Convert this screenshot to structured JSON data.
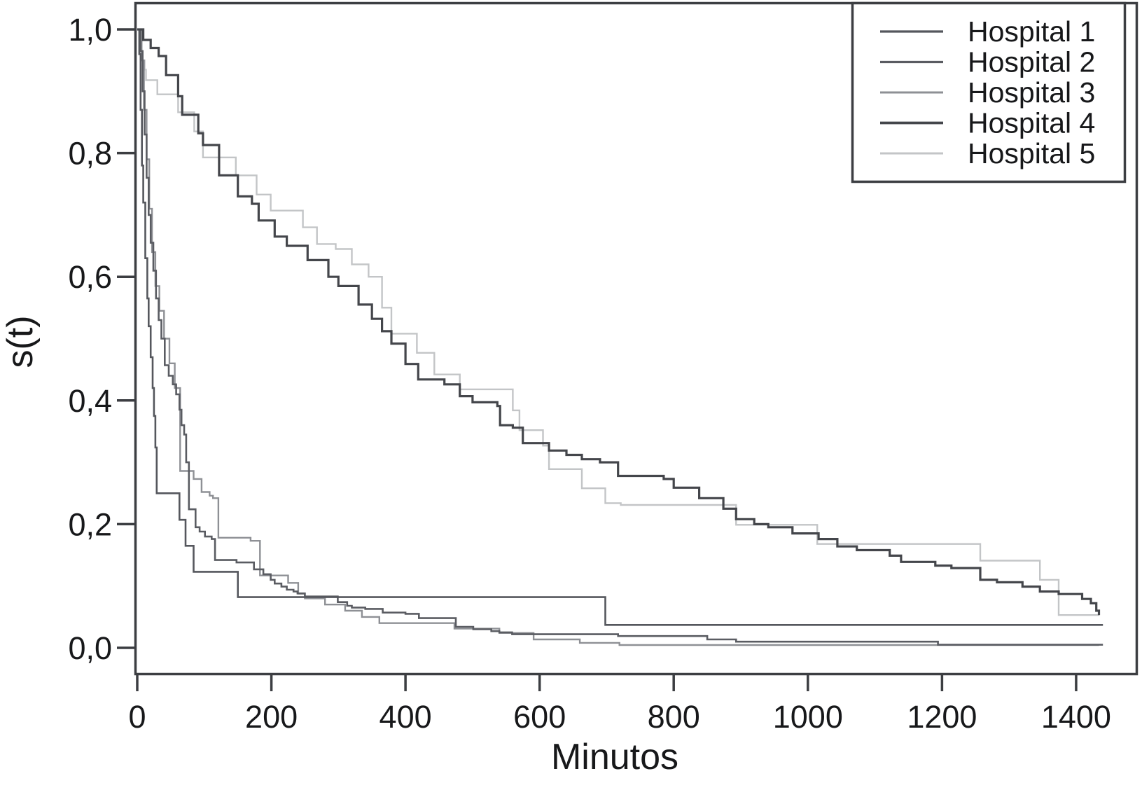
{
  "figure": {
    "background_color": "#ffffff",
    "frame_color": "#3c3e42",
    "text_color": "#17181a"
  },
  "chart_data": {
    "type": "line",
    "subtype": "kaplan-meier-step-survival",
    "title": "",
    "xlabel": "Minutos",
    "ylabel": "s(t)",
    "xlim": [
      0,
      1440
    ],
    "ylim": [
      0.0,
      1.0
    ],
    "grid": false,
    "legend_position": "top-right",
    "x_ticks": [
      0,
      200,
      400,
      600,
      800,
      1000,
      1200,
      1400
    ],
    "x_tick_labels": [
      "0",
      "200",
      "400",
      "600",
      "800",
      "1000",
      "1200",
      "1400"
    ],
    "y_ticks": [
      0.0,
      0.2,
      0.4,
      0.6,
      0.8,
      1.0
    ],
    "y_tick_labels": [
      "0,0",
      "0,2",
      "0,4",
      "0,6",
      "0,8",
      "1,0"
    ],
    "series": [
      {
        "name": "Hospital 5",
        "color": "#c3c5c7",
        "line_width": 2.4,
        "x": [
          0,
          7,
          11,
          13,
          30,
          61,
          85,
          98,
          147,
          178,
          199,
          247,
          268,
          296,
          320,
          345,
          365,
          379,
          417,
          443,
          481,
          560,
          570,
          605,
          614,
          663,
          698,
          721,
          893,
          1014,
          1257,
          1346,
          1374,
          1434
        ],
        "s": [
          1.0,
          0.95,
          0.935,
          0.918,
          0.895,
          0.866,
          0.835,
          0.793,
          0.764,
          0.733,
          0.707,
          0.68,
          0.653,
          0.645,
          0.62,
          0.6,
          0.55,
          0.508,
          0.477,
          0.442,
          0.418,
          0.384,
          0.352,
          0.327,
          0.289,
          0.258,
          0.234,
          0.231,
          0.199,
          0.168,
          0.141,
          0.11,
          0.053,
          0.053
        ]
      },
      {
        "name": "Hospital 3",
        "color": "#8e9095",
        "line_width": 2.4,
        "x": [
          0,
          6,
          10,
          14,
          18,
          22,
          27,
          33,
          40,
          48,
          56,
          64,
          84,
          96,
          108,
          113,
          121,
          169,
          183,
          225,
          240,
          250,
          280,
          310,
          335,
          361,
          473,
          540,
          591,
          660,
          719,
          1434
        ],
        "s": [
          1.0,
          0.95,
          0.87,
          0.79,
          0.71,
          0.64,
          0.585,
          0.545,
          0.5,
          0.46,
          0.42,
          0.286,
          0.273,
          0.252,
          0.246,
          0.242,
          0.178,
          0.173,
          0.117,
          0.105,
          0.0875,
          0.08,
          0.07,
          0.06,
          0.05,
          0.04,
          0.031,
          0.024,
          0.0136,
          0.008,
          0.0045,
          0.0045
        ]
      },
      {
        "name": "Hospital 2",
        "color": "#5a5c62",
        "line_width": 2.6,
        "x": [
          0,
          5,
          8,
          11,
          14,
          17,
          20,
          24,
          28,
          32,
          36,
          41,
          47,
          53,
          58,
          63,
          66,
          70,
          73,
          77,
          87,
          93,
          101,
          111,
          116,
          148,
          174,
          188,
          199,
          205,
          215,
          223,
          233,
          239,
          250,
          299,
          313,
          320,
          340,
          366,
          400,
          420,
          475,
          501,
          528,
          540,
          559,
          717,
          850,
          893,
          1194,
          1440
        ],
        "s": [
          1.0,
          0.965,
          0.9,
          0.83,
          0.76,
          0.7,
          0.655,
          0.61,
          0.565,
          0.53,
          0.5,
          0.457,
          0.44,
          0.426,
          0.41,
          0.385,
          0.36,
          0.345,
          0.3,
          0.224,
          0.195,
          0.188,
          0.18,
          0.176,
          0.142,
          0.138,
          0.127,
          0.119,
          0.11,
          0.104,
          0.099,
          0.094,
          0.091,
          0.088,
          0.083,
          0.074,
          0.068,
          0.065,
          0.063,
          0.057,
          0.055,
          0.048,
          0.034,
          0.03,
          0.027,
          0.025,
          0.022,
          0.019,
          0.0136,
          0.01,
          0.005,
          0.005
        ]
      },
      {
        "name": "Hospital 1",
        "color": "#55575d",
        "line_width": 2.6,
        "x": [
          0,
          3,
          5,
          7,
          9,
          12,
          15,
          17,
          20,
          23,
          25,
          27,
          29,
          63,
          72,
          84,
          150,
          698,
          1440
        ],
        "s": [
          1.0,
          0.96,
          0.87,
          0.78,
          0.72,
          0.63,
          0.565,
          0.52,
          0.47,
          0.42,
          0.375,
          0.324,
          0.25,
          0.207,
          0.165,
          0.123,
          0.082,
          0.037,
          0.037
        ]
      },
      {
        "name": "Hospital 4",
        "color": "#44464b",
        "line_width": 3.2,
        "x": [
          0,
          9,
          20,
          32,
          43,
          61,
          67,
          91,
          98,
          122,
          150,
          171,
          181,
          205,
          223,
          254,
          285,
          300,
          330,
          350,
          365,
          379,
          400,
          419,
          458,
          481,
          500,
          537,
          541,
          560,
          575,
          614,
          640,
          663,
          690,
          717,
          785,
          800,
          838,
          874,
          893,
          920,
          941,
          977,
          1016,
          1044,
          1073,
          1122,
          1139,
          1190,
          1214,
          1257,
          1282,
          1320,
          1346,
          1374,
          1409,
          1422,
          1430,
          1434
        ],
        "s": [
          1.0,
          0.983,
          0.97,
          0.957,
          0.926,
          0.892,
          0.862,
          0.832,
          0.813,
          0.764,
          0.73,
          0.718,
          0.691,
          0.665,
          0.65,
          0.627,
          0.6,
          0.585,
          0.555,
          0.532,
          0.512,
          0.492,
          0.459,
          0.434,
          0.426,
          0.407,
          0.397,
          0.391,
          0.36,
          0.356,
          0.331,
          0.319,
          0.312,
          0.305,
          0.3,
          0.278,
          0.273,
          0.259,
          0.242,
          0.225,
          0.208,
          0.2,
          0.195,
          0.185,
          0.176,
          0.164,
          0.158,
          0.149,
          0.139,
          0.133,
          0.129,
          0.11,
          0.106,
          0.099,
          0.091,
          0.087,
          0.079,
          0.072,
          0.06,
          0.053
        ]
      }
    ],
    "legend_order": [
      "Hospital 1",
      "Hospital 2",
      "Hospital 3",
      "Hospital 4",
      "Hospital 5"
    ]
  }
}
